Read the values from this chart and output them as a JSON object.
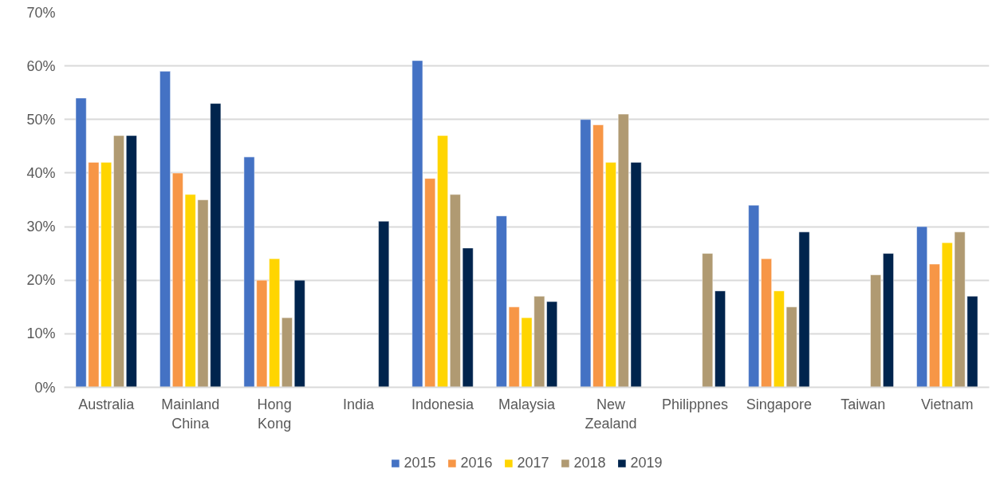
{
  "chart_data": {
    "type": "bar",
    "categories": [
      "Australia",
      "Mainland\nChina",
      "Hong\nKong",
      "India",
      "Indonesia",
      "Malaysia",
      "New\nZealand",
      "Philippnes",
      "Singapore",
      "Taiwan",
      "Vietnam"
    ],
    "series": [
      {
        "name": "2015",
        "color": "#4472c4",
        "values": [
          54,
          59,
          43,
          null,
          61,
          32,
          50,
          null,
          34,
          null,
          30
        ]
      },
      {
        "name": "2016",
        "color": "#f79646",
        "values": [
          42,
          40,
          20,
          null,
          39,
          15,
          49,
          null,
          24,
          null,
          23
        ]
      },
      {
        "name": "2017",
        "color": "#ffd500",
        "values": [
          42,
          36,
          24,
          null,
          47,
          13,
          42,
          null,
          18,
          null,
          27
        ]
      },
      {
        "name": "2018",
        "color": "#b09a72",
        "values": [
          47,
          35,
          13,
          null,
          36,
          17,
          51,
          25,
          15,
          21,
          29
        ]
      },
      {
        "name": "2019",
        "color": "#00244d",
        "values": [
          47,
          53,
          20,
          31,
          26,
          16,
          42,
          18,
          29,
          25,
          17
        ]
      }
    ],
    "ylim": [
      0,
      70
    ],
    "yticks": [
      {
        "value": 0,
        "label": "0%"
      },
      {
        "value": 10,
        "label": "10%"
      },
      {
        "value": 20,
        "label": "20%"
      },
      {
        "value": 30,
        "label": "30%"
      },
      {
        "value": 40,
        "label": "40%"
      },
      {
        "value": 50,
        "label": "50%"
      },
      {
        "value": 60,
        "label": "60%"
      },
      {
        "value": 70,
        "label": "70%"
      }
    ],
    "grid": "y",
    "legend": "bottom"
  }
}
